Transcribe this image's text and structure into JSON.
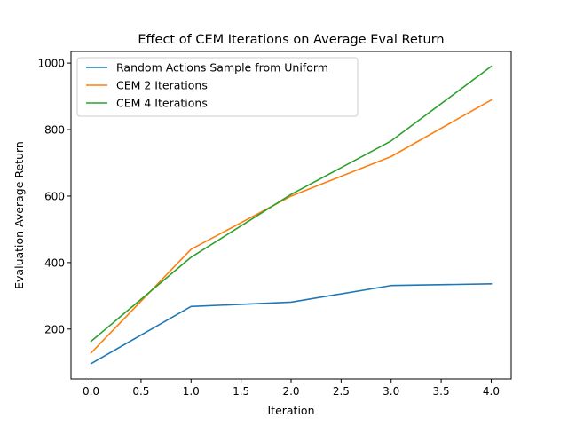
{
  "chart_data": {
    "type": "line",
    "title": "Effect of CEM Iterations on Average Eval Return",
    "xlabel": "Iteration",
    "ylabel": "Evaluation Average Return",
    "x": [
      0,
      1,
      2,
      3,
      4
    ],
    "xlim": [
      -0.2,
      4.2
    ],
    "ylim": [
      50,
      1035
    ],
    "xticks": [
      0.0,
      0.5,
      1.0,
      1.5,
      2.0,
      2.5,
      3.0,
      3.5,
      4.0
    ],
    "xtick_labels": [
      "0.0",
      "0.5",
      "1.0",
      "1.5",
      "2.0",
      "2.5",
      "3.0",
      "3.5",
      "4.0"
    ],
    "yticks": [
      200,
      400,
      600,
      800,
      1000
    ],
    "ytick_labels": [
      "200",
      "400",
      "600",
      "800",
      "1000"
    ],
    "grid": false,
    "legend_position": "top-left",
    "series": [
      {
        "name": "Random Actions Sample from Uniform",
        "color": "#1f77b4",
        "values": [
          96,
          268,
          281,
          331,
          336
        ]
      },
      {
        "name": "CEM 2 Iterations",
        "color": "#ff7f0e",
        "values": [
          128,
          440,
          600,
          719,
          889
        ]
      },
      {
        "name": "CEM 4 Iterations",
        "color": "#2ca02c",
        "values": [
          163,
          416,
          605,
          766,
          990
        ]
      }
    ]
  }
}
